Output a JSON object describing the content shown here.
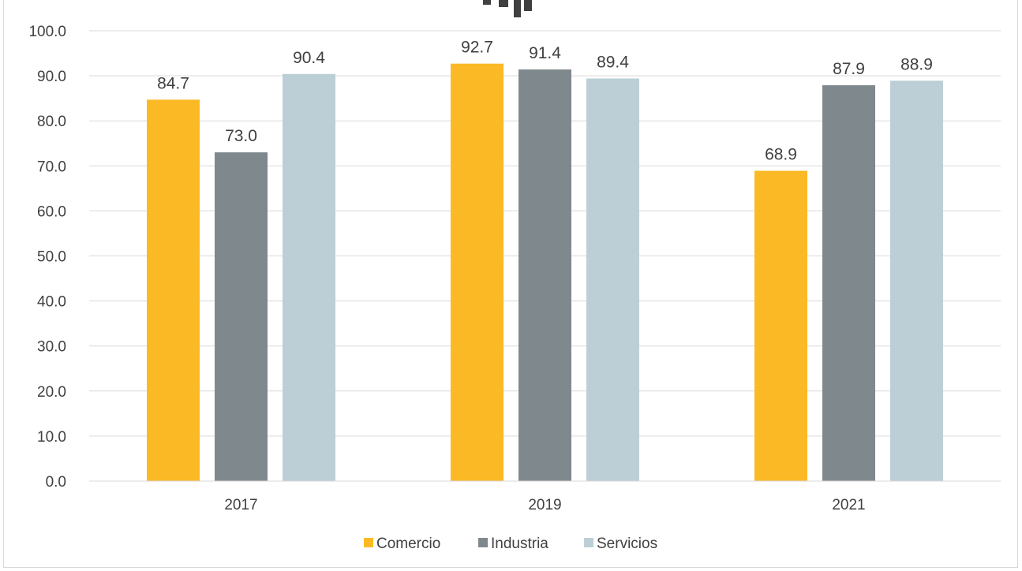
{
  "chart_data": {
    "type": "bar",
    "title": "",
    "categories": [
      "2017",
      "2019",
      "2021"
    ],
    "series": [
      {
        "name": "Comercio",
        "values": [
          84.7,
          92.7,
          68.9
        ],
        "color": "#FBBA25"
      },
      {
        "name": "Industria",
        "values": [
          73.0,
          91.4,
          87.9
        ],
        "color": "#7F888D"
      },
      {
        "name": "Servicios",
        "values": [
          90.4,
          89.4,
          88.9
        ],
        "color": "#BCCFD6"
      }
    ],
    "value_labels": [
      [
        "84.7",
        "92.7",
        "68.9"
      ],
      [
        "73.0",
        "91.4",
        "87.9"
      ],
      [
        "90.4",
        "89.4",
        "88.9"
      ]
    ],
    "yticks": [
      "0.0",
      "10.0",
      "20.0",
      "30.0",
      "40.0",
      "50.0",
      "60.0",
      "70.0",
      "80.0",
      "90.0",
      "100.0"
    ],
    "ylim": [
      0,
      100
    ],
    "xlabel": "",
    "ylabel": "",
    "grid": true,
    "legend_position": "bottom"
  }
}
